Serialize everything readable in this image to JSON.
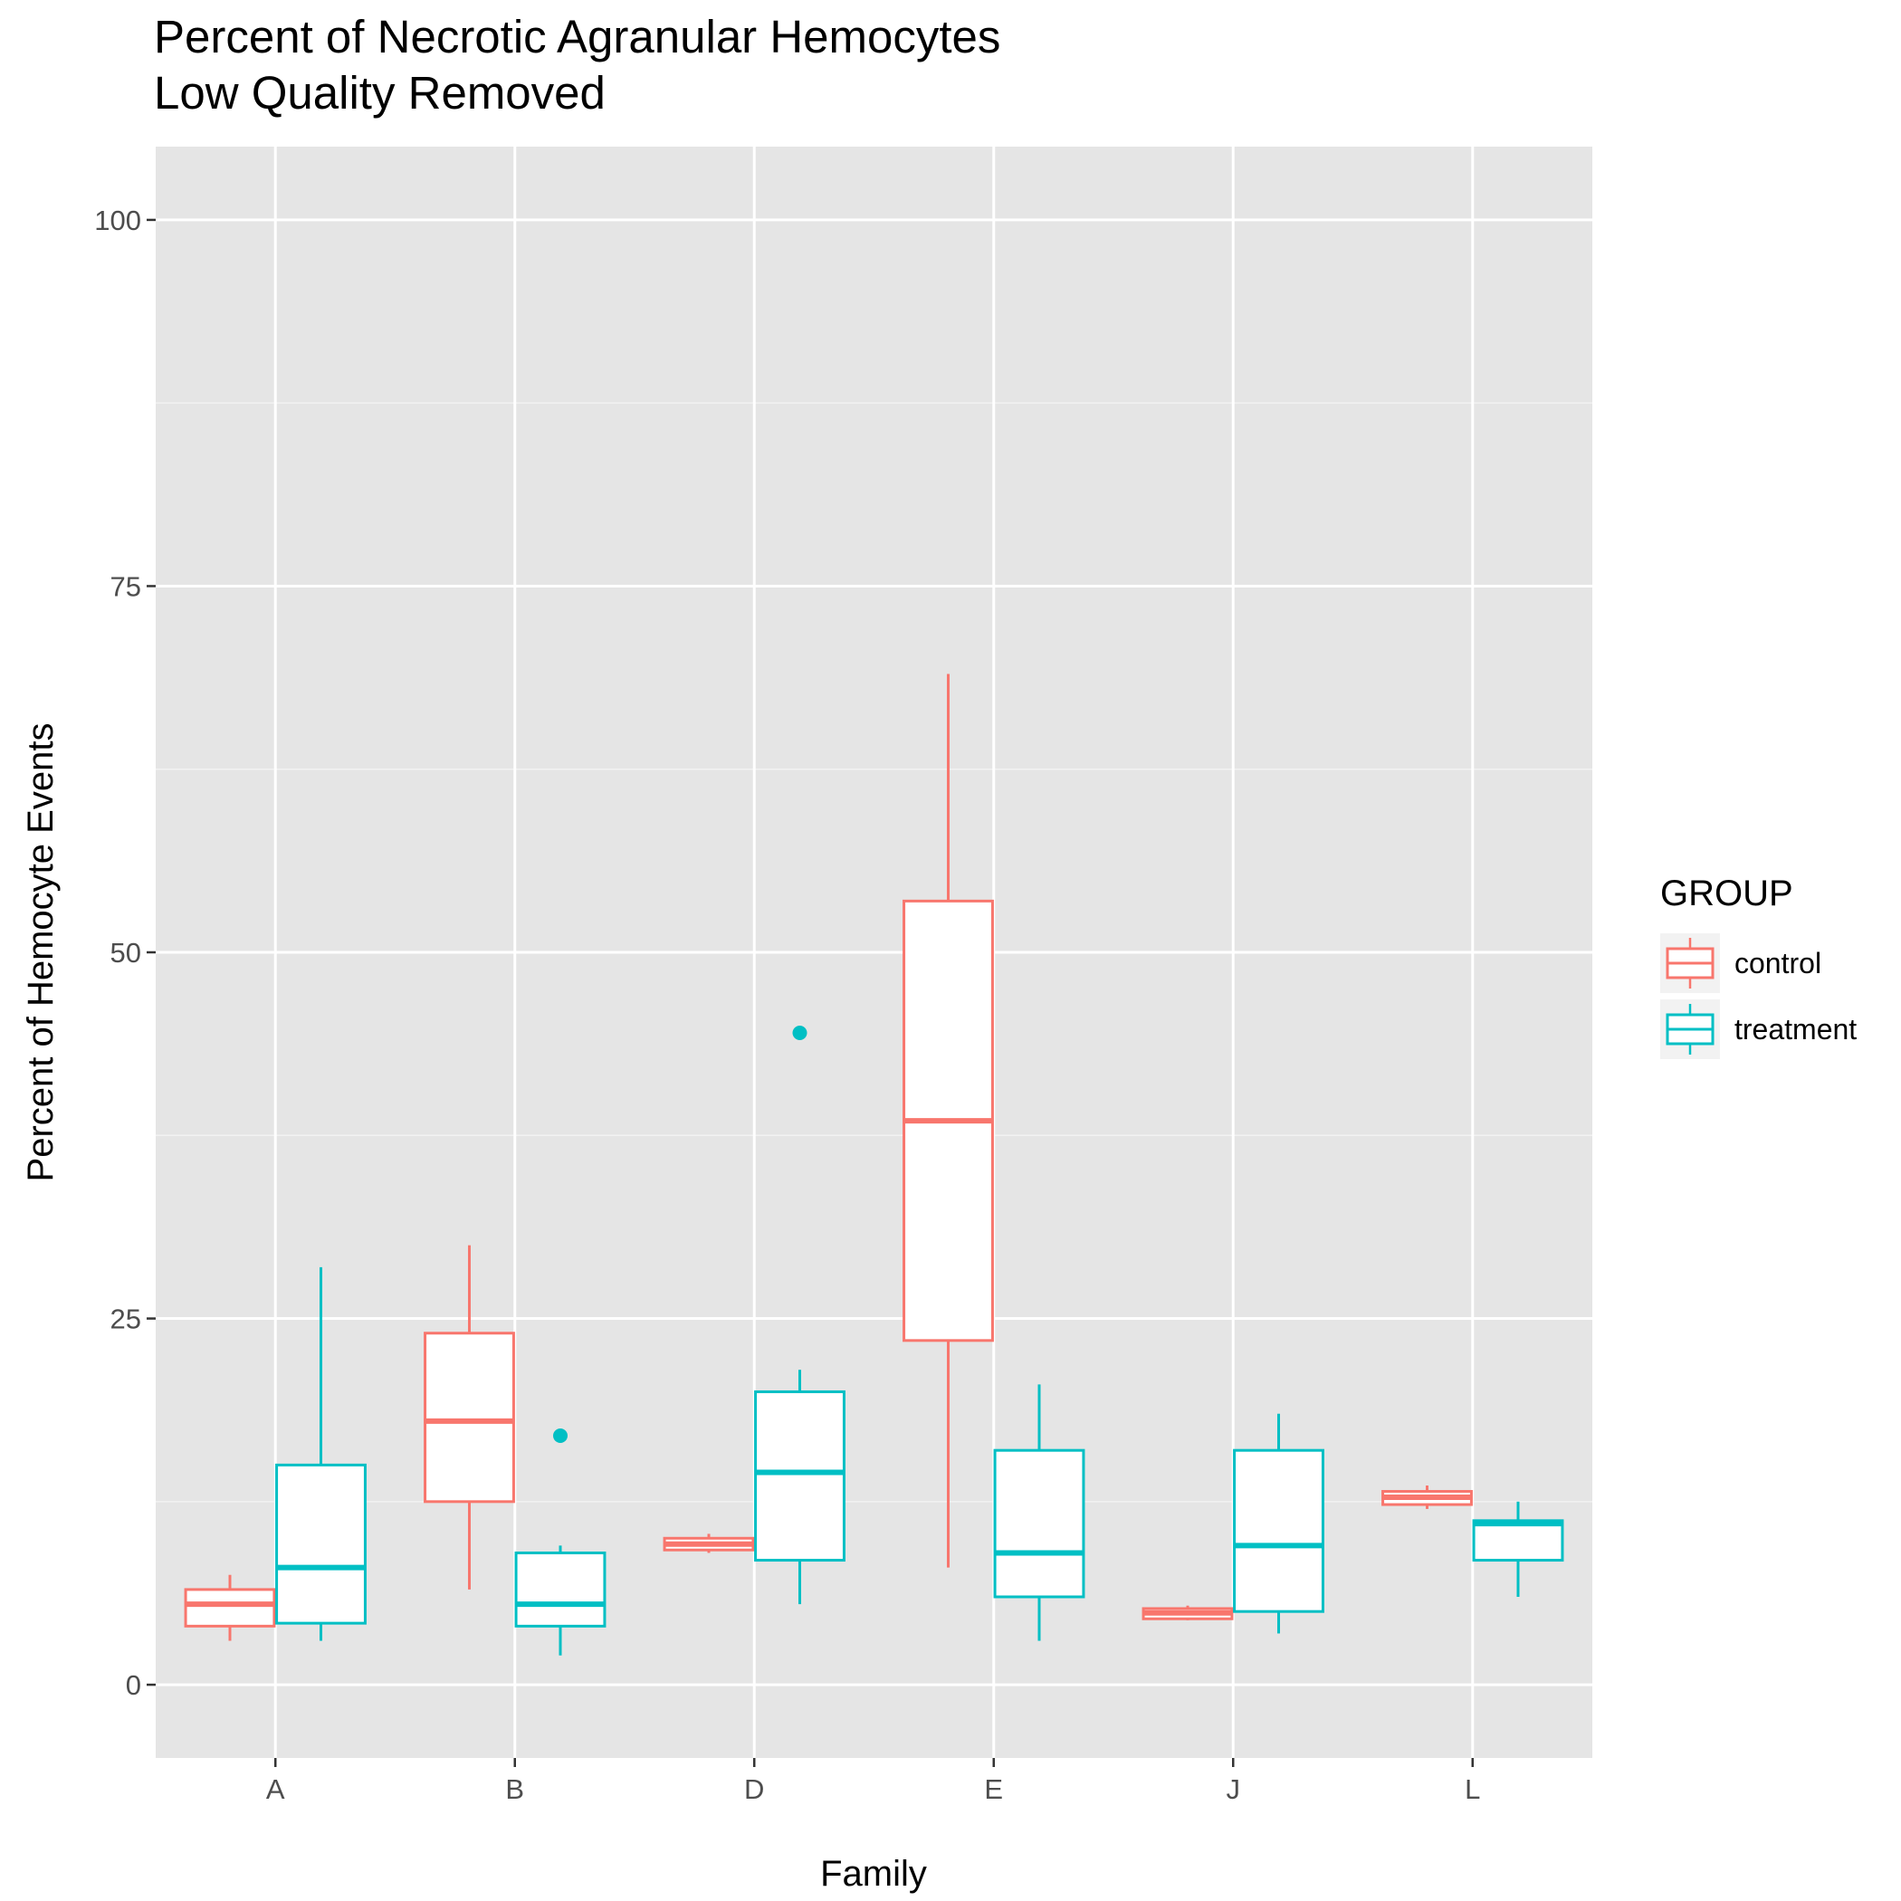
{
  "chart_data": {
    "type": "boxplot",
    "title": "Percent of Necrotic Agranular Hemocytes",
    "subtitle": "Low Quality Removed",
    "xlabel": "Family",
    "ylabel": "Percent of Hemocyte Events",
    "ylim": [
      -5,
      105
    ],
    "yticks": [
      0,
      25,
      50,
      75,
      100
    ],
    "categories": [
      "A",
      "B",
      "D",
      "E",
      "J",
      "L"
    ],
    "grid": true,
    "legend": {
      "title": "GROUP",
      "position": "right"
    },
    "series": [
      {
        "name": "control",
        "color": "#F8766D",
        "boxes": [
          {
            "category": "A",
            "whisker_low": 3.0,
            "q1": 4.0,
            "median": 5.5,
            "q3": 6.5,
            "whisker_high": 7.5,
            "outliers": []
          },
          {
            "category": "B",
            "whisker_low": 6.5,
            "q1": 12.5,
            "median": 18.0,
            "q3": 24.0,
            "whisker_high": 30.0,
            "outliers": []
          },
          {
            "category": "D",
            "whisker_low": 9.0,
            "q1": 9.2,
            "median": 9.6,
            "q3": 10.0,
            "whisker_high": 10.3,
            "outliers": []
          },
          {
            "category": "E",
            "whisker_low": 8.0,
            "q1": 23.5,
            "median": 38.5,
            "q3": 53.5,
            "whisker_high": 69.0,
            "outliers": []
          },
          {
            "category": "J",
            "whisker_low": 4.4,
            "q1": 4.5,
            "median": 4.9,
            "q3": 5.2,
            "whisker_high": 5.4,
            "outliers": []
          },
          {
            "category": "L",
            "whisker_low": 12.0,
            "q1": 12.3,
            "median": 12.8,
            "q3": 13.2,
            "whisker_high": 13.6,
            "outliers": []
          }
        ]
      },
      {
        "name": "treatment",
        "color": "#00BFC4",
        "boxes": [
          {
            "category": "A",
            "whisker_low": 3.0,
            "q1": 4.2,
            "median": 8.0,
            "q3": 15.0,
            "whisker_high": 28.5,
            "outliers": []
          },
          {
            "category": "B",
            "whisker_low": 2.0,
            "q1": 4.0,
            "median": 5.5,
            "q3": 9.0,
            "whisker_high": 9.5,
            "outliers": [
              17.0
            ]
          },
          {
            "category": "D",
            "whisker_low": 5.5,
            "q1": 8.5,
            "median": 14.5,
            "q3": 20.0,
            "whisker_high": 21.5,
            "outliers": [
              44.5
            ]
          },
          {
            "category": "E",
            "whisker_low": 3.0,
            "q1": 6.0,
            "median": 9.0,
            "q3": 16.0,
            "whisker_high": 20.5,
            "outliers": []
          },
          {
            "category": "J",
            "whisker_low": 3.5,
            "q1": 5.0,
            "median": 9.5,
            "q3": 16.0,
            "whisker_high": 18.5,
            "outliers": []
          },
          {
            "category": "L",
            "whisker_low": 6.0,
            "q1": 8.5,
            "median": 11.0,
            "q3": 11.2,
            "whisker_high": 12.5,
            "outliers": []
          }
        ]
      }
    ]
  }
}
